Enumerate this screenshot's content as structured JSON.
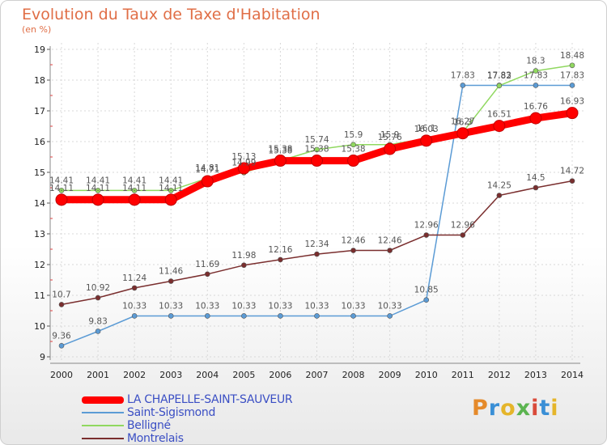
{
  "header": {
    "title": "Evolution du Taux de Taxe d'Habitation",
    "subtitle": "(en %)"
  },
  "logo": {
    "text": "Proxiti",
    "colors": [
      "#e58a2a",
      "#3a8fd6",
      "#e5b52a",
      "#5bb450",
      "#d94a3a",
      "#3a8fd6",
      "#e5b52a"
    ]
  },
  "chart_data": {
    "type": "line",
    "title": "Evolution du Taux de Taxe d'Habitation",
    "subtitle": "(en %)",
    "xlabel": "",
    "ylabel": "",
    "x": [
      2000,
      2001,
      2002,
      2003,
      2004,
      2005,
      2006,
      2007,
      2008,
      2009,
      2010,
      2011,
      2012,
      2013,
      2014
    ],
    "ylim": [
      9,
      19
    ],
    "yticks": [
      9,
      10,
      11,
      12,
      13,
      14,
      15,
      16,
      17,
      18,
      19
    ],
    "grid": true,
    "legend": "bottom-left",
    "series": [
      {
        "name": "LA CHAPELLE-SAINT-SAUVEUR",
        "color": "#ff0000",
        "emphasis": true,
        "values": [
          14.11,
          14.11,
          14.11,
          14.11,
          14.71,
          15.13,
          15.38,
          15.38,
          15.38,
          15.76,
          16.03,
          16.27,
          16.51,
          16.76,
          16.93
        ],
        "labels": [
          "14.11",
          "14.11",
          "14.11",
          "14.11",
          "14.71",
          "15.13",
          "15.38",
          "15.38",
          "15.38",
          "15.76",
          "16.03",
          "16.27",
          "16.51",
          "16.76",
          "16.93"
        ]
      },
      {
        "name": "Saint-Sigismond",
        "color": "#5b9bd5",
        "emphasis": false,
        "values": [
          9.36,
          9.83,
          10.33,
          10.33,
          10.33,
          10.33,
          10.33,
          10.33,
          10.33,
          10.33,
          10.85,
          17.83,
          17.83,
          17.83,
          17.83
        ],
        "labels": [
          "9.36",
          "9.83",
          "10.33",
          "10.33",
          "10.33",
          "10.33",
          "10.33",
          "10.33",
          "10.33",
          "10.33",
          "10.85",
          "17.83",
          "17.83",
          "17.83",
          "17.83"
        ]
      },
      {
        "name": "Belligné",
        "color": "#90d860",
        "emphasis": false,
        "values": [
          14.41,
          14.41,
          14.41,
          14.41,
          14.81,
          14.99,
          15.38,
          15.74,
          15.9,
          15.9,
          16.1,
          16.3,
          17.82,
          18.3,
          18.48
        ],
        "labels": [
          "14.41",
          "14.41",
          "14.41",
          "14.41",
          "14.81",
          "14.99",
          "15.38",
          "15.74",
          "15.9",
          "15.9",
          "16.1",
          "16.3",
          "17.82",
          "18.3",
          "18.48"
        ]
      },
      {
        "name": "Montrelais",
        "color": "#7a2e2e",
        "emphasis": false,
        "values": [
          10.7,
          10.92,
          11.24,
          11.46,
          11.69,
          11.98,
          12.16,
          12.34,
          12.46,
          12.46,
          12.96,
          12.96,
          14.25,
          14.5,
          14.72
        ],
        "labels": [
          "10.7",
          "10.92",
          "11.24",
          "11.46",
          "11.69",
          "11.98",
          "12.16",
          "12.34",
          "12.46",
          "12.46",
          "12.96",
          "12.96",
          "14.25",
          "14.5",
          "14.72"
        ]
      }
    ]
  }
}
